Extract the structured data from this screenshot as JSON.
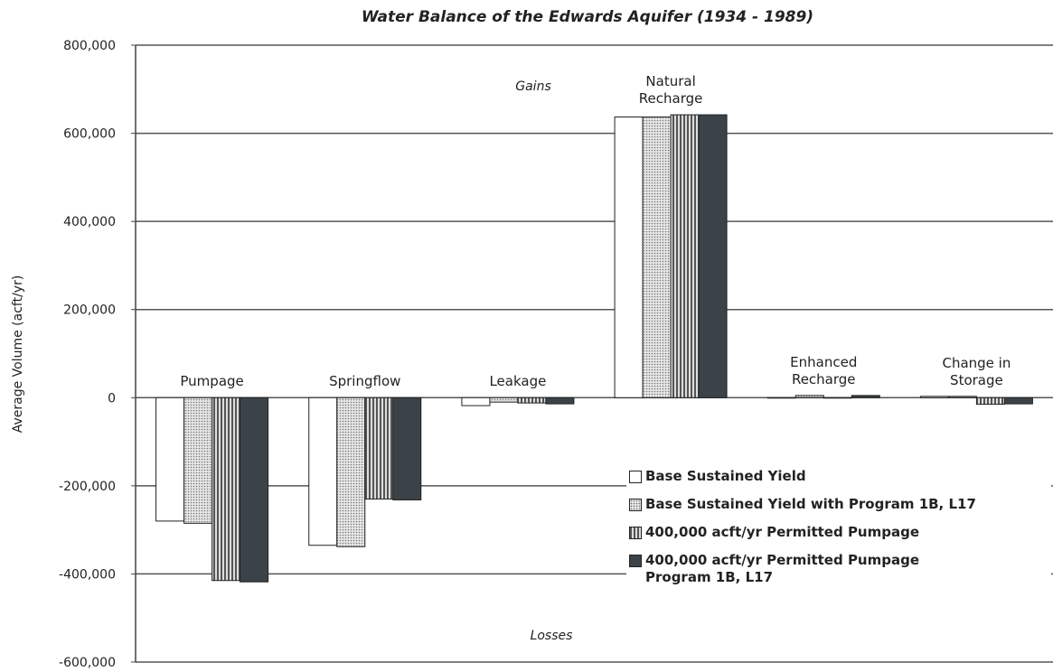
{
  "chart_data": {
    "type": "bar",
    "title": "Water Balance of the Edwards Aquifer (1934 - 1989)",
    "y_label": "Average Volume (acft/yr)",
    "annotations": [
      "Gains",
      "Losses"
    ],
    "categories": [
      "Pumpage",
      "Springflow",
      "Leakage",
      "Natural Recharge",
      "Enhanced Recharge",
      "Change in Storage"
    ],
    "series": [
      {
        "name": "Base Sustained Yield",
        "color": "#ffffff",
        "fill_pattern": null,
        "values": [
          -280000,
          -335000,
          -18000,
          637000,
          0,
          3000
        ]
      },
      {
        "name": "Base Sustained Yield with Program 1B, L17",
        "color": "#d8d8d8",
        "fill_pattern": "dots",
        "values": [
          -285000,
          -338000,
          -10000,
          637000,
          5000,
          3000
        ]
      },
      {
        "name": "400,000 acft/yr Permitted Pumpage",
        "color": "#9a9a9a",
        "fill_pattern": "stripes",
        "values": [
          -415000,
          -230000,
          -12000,
          642000,
          0,
          -15000
        ]
      },
      {
        "name": "400,000 acft/yr Permitted Pumpage Program 1B, L17",
        "color": "#3b4348",
        "fill_pattern": null,
        "values": [
          -418000,
          -232000,
          -14000,
          642000,
          5000,
          -14000
        ]
      }
    ],
    "ylim": [
      -600000,
      800000
    ],
    "yticks": [
      {
        "value": -600000,
        "label": "-600,000"
      },
      {
        "value": -400000,
        "label": "-400,000"
      },
      {
        "value": -200000,
        "label": "-200,000"
      },
      0,
      {
        "value": 200000,
        "label": "200,000"
      },
      {
        "value": 400000,
        "label": "400,000"
      },
      {
        "value": 600000,
        "label": "600,000"
      },
      {
        "value": 800000,
        "label": "800,000"
      }
    ],
    "grid": true
  }
}
